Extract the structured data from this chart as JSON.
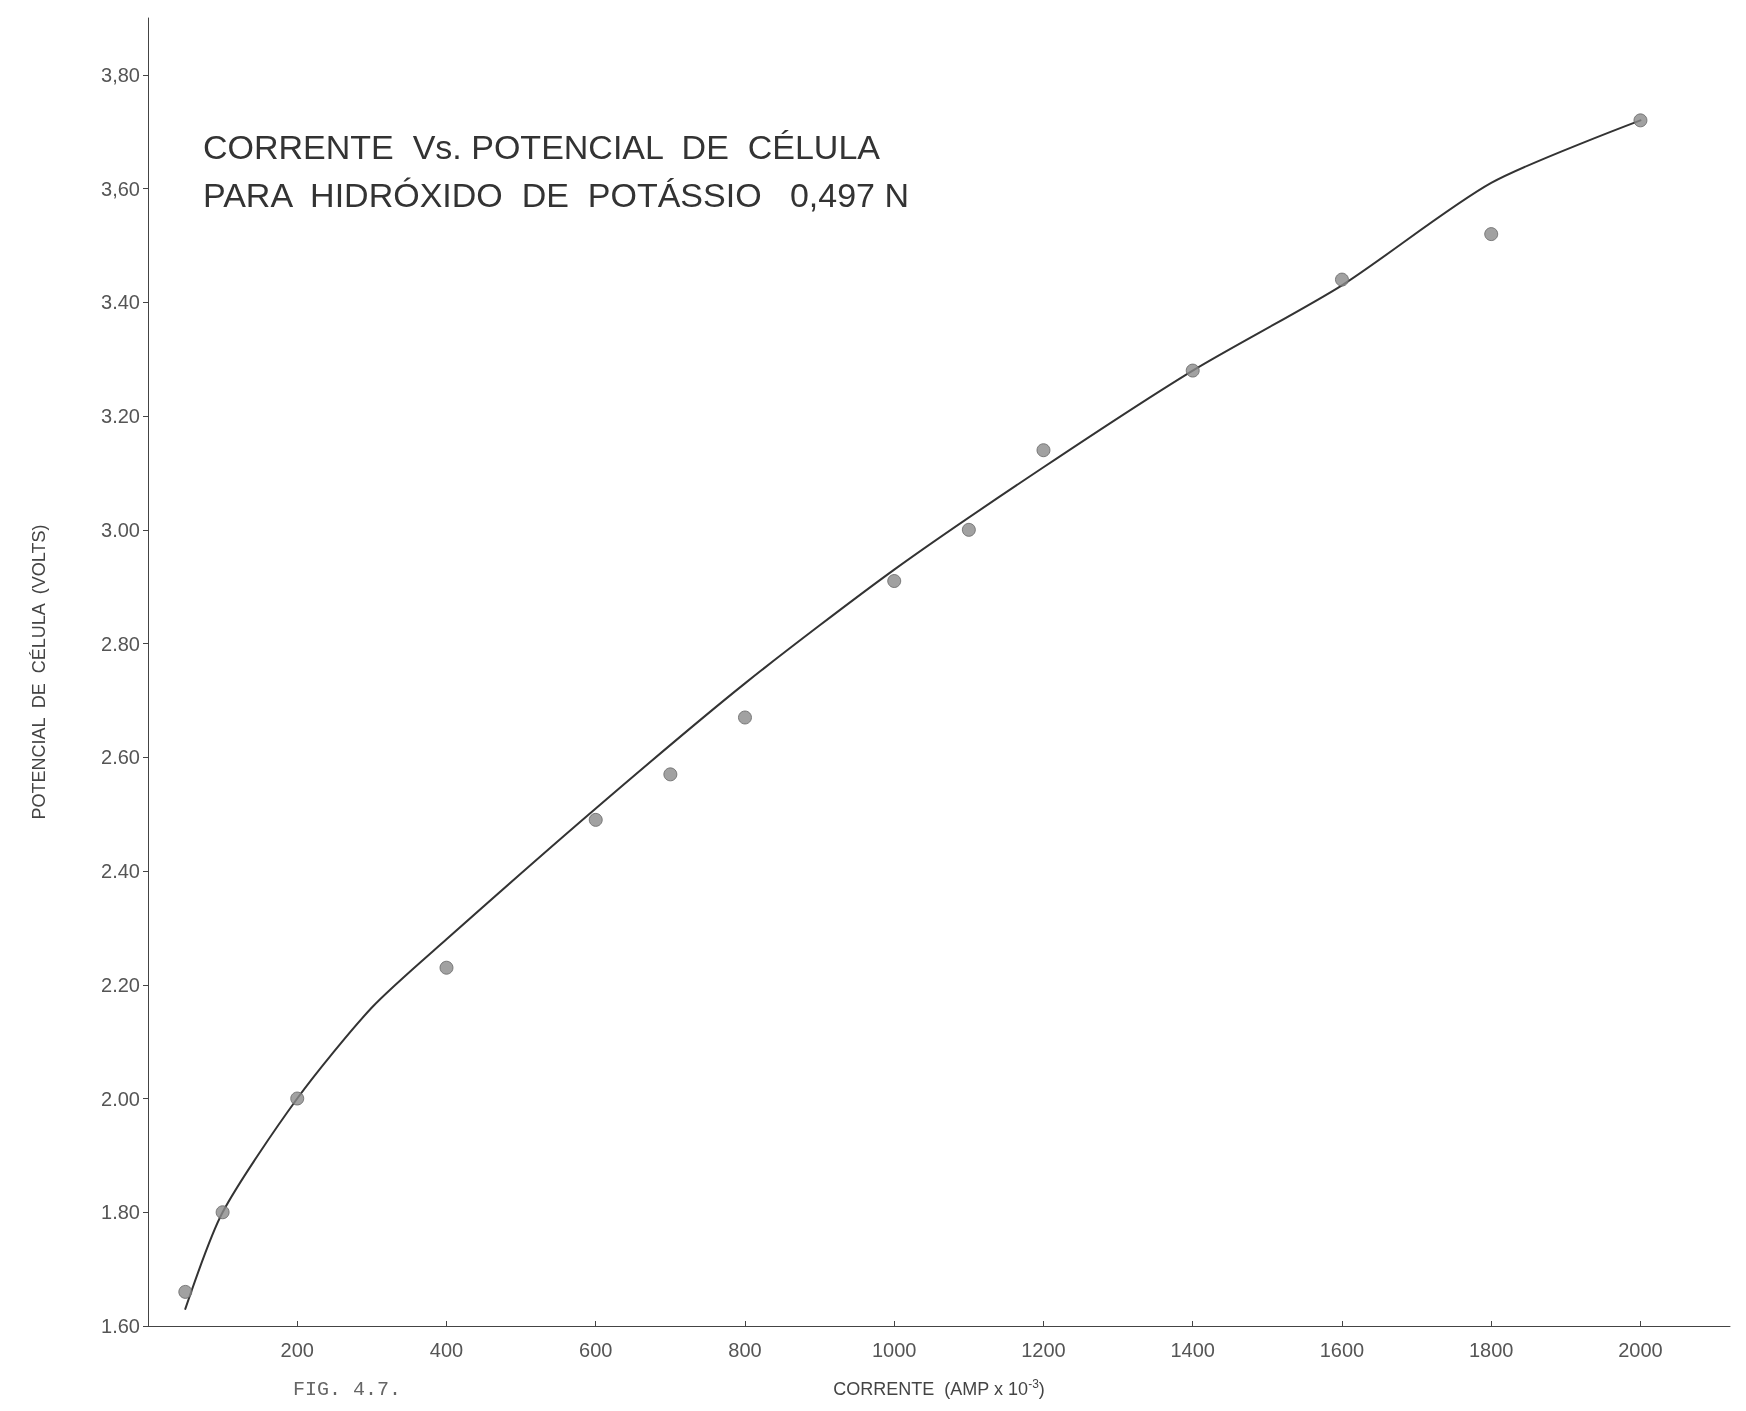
{
  "chart_data": {
    "type": "scatter",
    "title": "CORRENTE  Vs. POTENCIAL  DE  CÉLULA\nPARA  HIDRÓXIDO  DE  POTÁSSIO   0,497 N",
    "xlabel": "CORRENTE  (AMP x 10$^{-3}$)",
    "ylabel": "POTENCIAL  DE  CÉLULA  (VOLTS)",
    "annotations": [
      "FIG. 4.7."
    ],
    "series": [
      {
        "color": "#8a8a8a",
        "marker": "circle",
        "x": [
          50,
          100,
          200,
          400,
          600,
          700,
          800,
          1000,
          1100,
          1200,
          1400,
          1600,
          1800,
          2000
        ],
        "values": [
          1.66,
          1.8,
          2.0,
          2.23,
          2.49,
          2.57,
          2.67,
          2.91,
          3.0,
          3.14,
          3.28,
          3.44,
          3.52,
          3.72
        ]
      },
      {
        "type": "line",
        "color": "#333333",
        "marker": "none",
        "line_style": "solid",
        "x": [
          50,
          100,
          200,
          300,
          400,
          600,
          800,
          1000,
          1200,
          1400,
          1600,
          1800,
          2000
        ],
        "values": [
          1.63,
          1.8,
          2.0,
          2.16,
          2.28,
          2.51,
          2.73,
          2.93,
          3.11,
          3.28,
          3.43,
          3.61,
          3.72
        ]
      }
    ],
    "xlim": [
      0,
      2120
    ],
    "xticks": [
      200,
      400,
      600,
      800,
      1000,
      1200,
      1400,
      1600,
      1800,
      2000
    ],
    "ylim": [
      1.6,
      3.9
    ],
    "yticks": [
      {
        "value": 1.6,
        "label": "1.60"
      },
      {
        "value": 1.8,
        "label": "1.80"
      },
      {
        "value": 2.0,
        "label": "2.00"
      },
      {
        "value": 2.2,
        "label": "2.20"
      },
      {
        "value": 2.4,
        "label": "2.40"
      },
      {
        "value": 2.6,
        "label": "2.60"
      },
      {
        "value": 2.8,
        "label": "2.80"
      },
      {
        "value": 3.0,
        "label": "3.00"
      },
      {
        "value": 3.2,
        "label": "3.20"
      },
      {
        "value": 3.4,
        "label": "3.40"
      },
      {
        "value": 3.6,
        "label": "3,60"
      },
      {
        "value": 3.8,
        "label": "3,80"
      }
    ],
    "grid": false
  }
}
